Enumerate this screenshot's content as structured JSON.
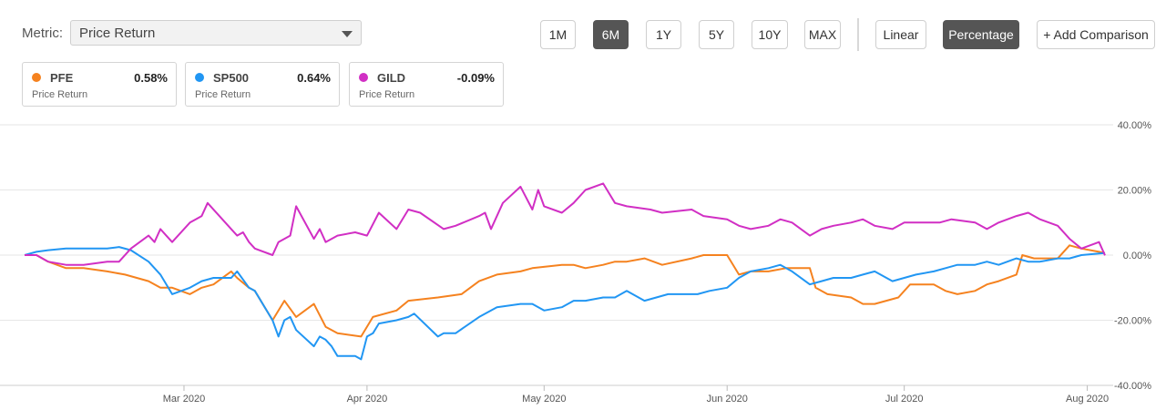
{
  "metric": {
    "label": "Metric:",
    "value": "Price Return"
  },
  "range_buttons": [
    {
      "label": "1M",
      "active": false
    },
    {
      "label": "6M",
      "active": true
    },
    {
      "label": "1Y",
      "active": false
    },
    {
      "label": "5Y",
      "active": false
    },
    {
      "label": "10Y",
      "active": false
    },
    {
      "label": "MAX",
      "active": false
    }
  ],
  "scale_buttons": [
    {
      "label": "Linear",
      "active": false
    },
    {
      "label": "Percentage",
      "active": true
    }
  ],
  "add_comparison_label": "+ Add Comparison",
  "legend": [
    {
      "ticker": "PFE",
      "value": "0.58%",
      "sub": "Price Return",
      "color": "#f5821f"
    },
    {
      "ticker": "SP500",
      "value": "0.64%",
      "sub": "Price Return",
      "color": "#2196f3"
    },
    {
      "ticker": "GILD",
      "value": "-0.09%",
      "sub": "Price Return",
      "color": "#d12fc4"
    }
  ],
  "chart_data": {
    "type": "line",
    "title": "",
    "xlabel": "",
    "ylabel": "",
    "x_range": [
      "2020-02-03",
      "2020-08-04"
    ],
    "ylim": [
      -40,
      40
    ],
    "y_ticks": [
      40,
      20,
      0,
      -20,
      -40
    ],
    "y_tick_labels": [
      "40.00%",
      "20.00%",
      "0.00%",
      "-20.00%",
      "-40.00%"
    ],
    "x_ticks": [
      {
        "date": "2020-03-01",
        "label": "Mar 2020"
      },
      {
        "date": "2020-04-01",
        "label": "Apr 2020"
      },
      {
        "date": "2020-05-01",
        "label": "May 2020"
      },
      {
        "date": "2020-06-01",
        "label": "Jun 2020"
      },
      {
        "date": "2020-07-01",
        "label": "Jul 2020"
      },
      {
        "date": "2020-08-01",
        "label": "Aug 2020"
      }
    ],
    "grid": "horizontal",
    "series": [
      {
        "name": "PFE",
        "color": "#f5821f",
        "points": [
          [
            "2020-02-03",
            0
          ],
          [
            "2020-02-05",
            0
          ],
          [
            "2020-02-07",
            -2
          ],
          [
            "2020-02-10",
            -4
          ],
          [
            "2020-02-13",
            -4
          ],
          [
            "2020-02-17",
            -5
          ],
          [
            "2020-02-20",
            -6
          ],
          [
            "2020-02-24",
            -8
          ],
          [
            "2020-02-26",
            -10
          ],
          [
            "2020-02-28",
            -10
          ],
          [
            "2020-03-02",
            -12
          ],
          [
            "2020-03-04",
            -10
          ],
          [
            "2020-03-06",
            -9
          ],
          [
            "2020-03-09",
            -5
          ],
          [
            "2020-03-10",
            -7
          ],
          [
            "2020-03-12",
            -10
          ],
          [
            "2020-03-13",
            -11
          ],
          [
            "2020-03-16",
            -20
          ],
          [
            "2020-03-18",
            -14
          ],
          [
            "2020-03-20",
            -19
          ],
          [
            "2020-03-23",
            -15
          ],
          [
            "2020-03-25",
            -22
          ],
          [
            "2020-03-27",
            -24
          ],
          [
            "2020-03-31",
            -25
          ],
          [
            "2020-04-02",
            -19
          ],
          [
            "2020-04-06",
            -17
          ],
          [
            "2020-04-08",
            -14
          ],
          [
            "2020-04-13",
            -13
          ],
          [
            "2020-04-17",
            -12
          ],
          [
            "2020-04-20",
            -8
          ],
          [
            "2020-04-23",
            -6
          ],
          [
            "2020-04-27",
            -5
          ],
          [
            "2020-04-29",
            -4
          ],
          [
            "2020-05-04",
            -3
          ],
          [
            "2020-05-06",
            -3
          ],
          [
            "2020-05-08",
            -4
          ],
          [
            "2020-05-11",
            -3
          ],
          [
            "2020-05-13",
            -2
          ],
          [
            "2020-05-15",
            -2
          ],
          [
            "2020-05-18",
            -1
          ],
          [
            "2020-05-21",
            -3
          ],
          [
            "2020-05-26",
            -1
          ],
          [
            "2020-05-28",
            0
          ],
          [
            "2020-06-01",
            0
          ],
          [
            "2020-06-03",
            -6
          ],
          [
            "2020-06-05",
            -5
          ],
          [
            "2020-06-08",
            -5
          ],
          [
            "2020-06-11",
            -4
          ],
          [
            "2020-06-15",
            -4
          ],
          [
            "2020-06-16",
            -10
          ],
          [
            "2020-06-18",
            -12
          ],
          [
            "2020-06-22",
            -13
          ],
          [
            "2020-06-24",
            -15
          ],
          [
            "2020-06-26",
            -15
          ],
          [
            "2020-06-30",
            -13
          ],
          [
            "2020-07-02",
            -9
          ],
          [
            "2020-07-06",
            -9
          ],
          [
            "2020-07-08",
            -11
          ],
          [
            "2020-07-10",
            -12
          ],
          [
            "2020-07-13",
            -11
          ],
          [
            "2020-07-15",
            -9
          ],
          [
            "2020-07-17",
            -8
          ],
          [
            "2020-07-20",
            -6
          ],
          [
            "2020-07-21",
            0
          ],
          [
            "2020-07-23",
            -1
          ],
          [
            "2020-07-27",
            -1
          ],
          [
            "2020-07-29",
            3
          ],
          [
            "2020-07-31",
            2
          ],
          [
            "2020-08-03",
            1
          ],
          [
            "2020-08-04",
            0.58
          ]
        ]
      },
      {
        "name": "SP500",
        "color": "#2196f3",
        "points": [
          [
            "2020-02-03",
            0
          ],
          [
            "2020-02-05",
            1
          ],
          [
            "2020-02-07",
            1.5
          ],
          [
            "2020-02-10",
            2
          ],
          [
            "2020-02-13",
            2
          ],
          [
            "2020-02-17",
            2
          ],
          [
            "2020-02-19",
            2.5
          ],
          [
            "2020-02-21",
            1.5
          ],
          [
            "2020-02-24",
            -2
          ],
          [
            "2020-02-26",
            -6
          ],
          [
            "2020-02-28",
            -12
          ],
          [
            "2020-03-02",
            -10
          ],
          [
            "2020-03-04",
            -8
          ],
          [
            "2020-03-06",
            -7
          ],
          [
            "2020-03-09",
            -7
          ],
          [
            "2020-03-10",
            -5
          ],
          [
            "2020-03-12",
            -10
          ],
          [
            "2020-03-13",
            -11
          ],
          [
            "2020-03-16",
            -20
          ],
          [
            "2020-03-17",
            -25
          ],
          [
            "2020-03-18",
            -20
          ],
          [
            "2020-03-19",
            -19
          ],
          [
            "2020-03-20",
            -23
          ],
          [
            "2020-03-23",
            -28
          ],
          [
            "2020-03-24",
            -25
          ],
          [
            "2020-03-25",
            -26
          ],
          [
            "2020-03-26",
            -28
          ],
          [
            "2020-03-27",
            -31
          ],
          [
            "2020-03-30",
            -31
          ],
          [
            "2020-03-31",
            -32
          ],
          [
            "2020-04-01",
            -25
          ],
          [
            "2020-04-02",
            -24
          ],
          [
            "2020-04-03",
            -21
          ],
          [
            "2020-04-06",
            -20
          ],
          [
            "2020-04-08",
            -19
          ],
          [
            "2020-04-09",
            -18
          ],
          [
            "2020-04-13",
            -25
          ],
          [
            "2020-04-14",
            -24
          ],
          [
            "2020-04-16",
            -24
          ],
          [
            "2020-04-20",
            -19
          ],
          [
            "2020-04-23",
            -16
          ],
          [
            "2020-04-27",
            -15
          ],
          [
            "2020-04-29",
            -15
          ],
          [
            "2020-05-01",
            -17
          ],
          [
            "2020-05-04",
            -16
          ],
          [
            "2020-05-06",
            -14
          ],
          [
            "2020-05-08",
            -14
          ],
          [
            "2020-05-11",
            -13
          ],
          [
            "2020-05-13",
            -13
          ],
          [
            "2020-05-15",
            -11
          ],
          [
            "2020-05-18",
            -14
          ],
          [
            "2020-05-20",
            -13
          ],
          [
            "2020-05-22",
            -12
          ],
          [
            "2020-05-27",
            -12
          ],
          [
            "2020-05-29",
            -11
          ],
          [
            "2020-06-01",
            -10
          ],
          [
            "2020-06-03",
            -7
          ],
          [
            "2020-06-05",
            -5
          ],
          [
            "2020-06-08",
            -4
          ],
          [
            "2020-06-10",
            -3
          ],
          [
            "2020-06-12",
            -5
          ],
          [
            "2020-06-15",
            -9
          ],
          [
            "2020-06-17",
            -8
          ],
          [
            "2020-06-19",
            -7
          ],
          [
            "2020-06-22",
            -7
          ],
          [
            "2020-06-24",
            -6
          ],
          [
            "2020-06-26",
            -5
          ],
          [
            "2020-06-29",
            -8
          ],
          [
            "2020-07-01",
            -7
          ],
          [
            "2020-07-03",
            -6
          ],
          [
            "2020-07-06",
            -5
          ],
          [
            "2020-07-08",
            -4
          ],
          [
            "2020-07-10",
            -3
          ],
          [
            "2020-07-13",
            -3
          ],
          [
            "2020-07-15",
            -2
          ],
          [
            "2020-07-17",
            -3
          ],
          [
            "2020-07-20",
            -1
          ],
          [
            "2020-07-22",
            -2
          ],
          [
            "2020-07-24",
            -2
          ],
          [
            "2020-07-27",
            -1
          ],
          [
            "2020-07-29",
            -1
          ],
          [
            "2020-07-31",
            0
          ],
          [
            "2020-08-03",
            0.5
          ],
          [
            "2020-08-04",
            0.64
          ]
        ]
      },
      {
        "name": "GILD",
        "color": "#d12fc4",
        "points": [
          [
            "2020-02-03",
            0
          ],
          [
            "2020-02-05",
            0
          ],
          [
            "2020-02-07",
            -2
          ],
          [
            "2020-02-10",
            -3
          ],
          [
            "2020-02-13",
            -3
          ],
          [
            "2020-02-17",
            -2
          ],
          [
            "2020-02-19",
            -2
          ],
          [
            "2020-02-21",
            2
          ],
          [
            "2020-02-24",
            6
          ],
          [
            "2020-02-25",
            4
          ],
          [
            "2020-02-26",
            8
          ],
          [
            "2020-02-27",
            6
          ],
          [
            "2020-02-28",
            4
          ],
          [
            "2020-03-02",
            10
          ],
          [
            "2020-03-03",
            11
          ],
          [
            "2020-03-04",
            12
          ],
          [
            "2020-03-05",
            16
          ],
          [
            "2020-03-09",
            8
          ],
          [
            "2020-03-10",
            6
          ],
          [
            "2020-03-11",
            7
          ],
          [
            "2020-03-12",
            4
          ],
          [
            "2020-03-13",
            2
          ],
          [
            "2020-03-16",
            0
          ],
          [
            "2020-03-17",
            4
          ],
          [
            "2020-03-19",
            6
          ],
          [
            "2020-03-20",
            15
          ],
          [
            "2020-03-23",
            5
          ],
          [
            "2020-03-24",
            8
          ],
          [
            "2020-03-25",
            4
          ],
          [
            "2020-03-27",
            6
          ],
          [
            "2020-03-30",
            7
          ],
          [
            "2020-04-01",
            6
          ],
          [
            "2020-04-03",
            13
          ],
          [
            "2020-04-06",
            8
          ],
          [
            "2020-04-08",
            14
          ],
          [
            "2020-04-10",
            13
          ],
          [
            "2020-04-14",
            8
          ],
          [
            "2020-04-16",
            9
          ],
          [
            "2020-04-20",
            12
          ],
          [
            "2020-04-21",
            13
          ],
          [
            "2020-04-22",
            8
          ],
          [
            "2020-04-24",
            16
          ],
          [
            "2020-04-27",
            21
          ],
          [
            "2020-04-29",
            14
          ],
          [
            "2020-04-30",
            20
          ],
          [
            "2020-05-01",
            15
          ],
          [
            "2020-05-04",
            13
          ],
          [
            "2020-05-06",
            16
          ],
          [
            "2020-05-08",
            20
          ],
          [
            "2020-05-11",
            22
          ],
          [
            "2020-05-13",
            16
          ],
          [
            "2020-05-15",
            15
          ],
          [
            "2020-05-19",
            14
          ],
          [
            "2020-05-21",
            13
          ],
          [
            "2020-05-26",
            14
          ],
          [
            "2020-05-28",
            12
          ],
          [
            "2020-06-01",
            11
          ],
          [
            "2020-06-03",
            9
          ],
          [
            "2020-06-05",
            8
          ],
          [
            "2020-06-08",
            9
          ],
          [
            "2020-06-10",
            11
          ],
          [
            "2020-06-12",
            10
          ],
          [
            "2020-06-15",
            6
          ],
          [
            "2020-06-17",
            8
          ],
          [
            "2020-06-19",
            9
          ],
          [
            "2020-06-22",
            10
          ],
          [
            "2020-06-24",
            11
          ],
          [
            "2020-06-26",
            9
          ],
          [
            "2020-06-29",
            8
          ],
          [
            "2020-07-01",
            10
          ],
          [
            "2020-07-03",
            10
          ],
          [
            "2020-07-07",
            10
          ],
          [
            "2020-07-09",
            11
          ],
          [
            "2020-07-13",
            10
          ],
          [
            "2020-07-15",
            8
          ],
          [
            "2020-07-17",
            10
          ],
          [
            "2020-07-20",
            12
          ],
          [
            "2020-07-22",
            13
          ],
          [
            "2020-07-24",
            11
          ],
          [
            "2020-07-27",
            9
          ],
          [
            "2020-07-29",
            5
          ],
          [
            "2020-07-31",
            2
          ],
          [
            "2020-08-03",
            4
          ],
          [
            "2020-08-04",
            -0.09
          ]
        ]
      }
    ]
  }
}
